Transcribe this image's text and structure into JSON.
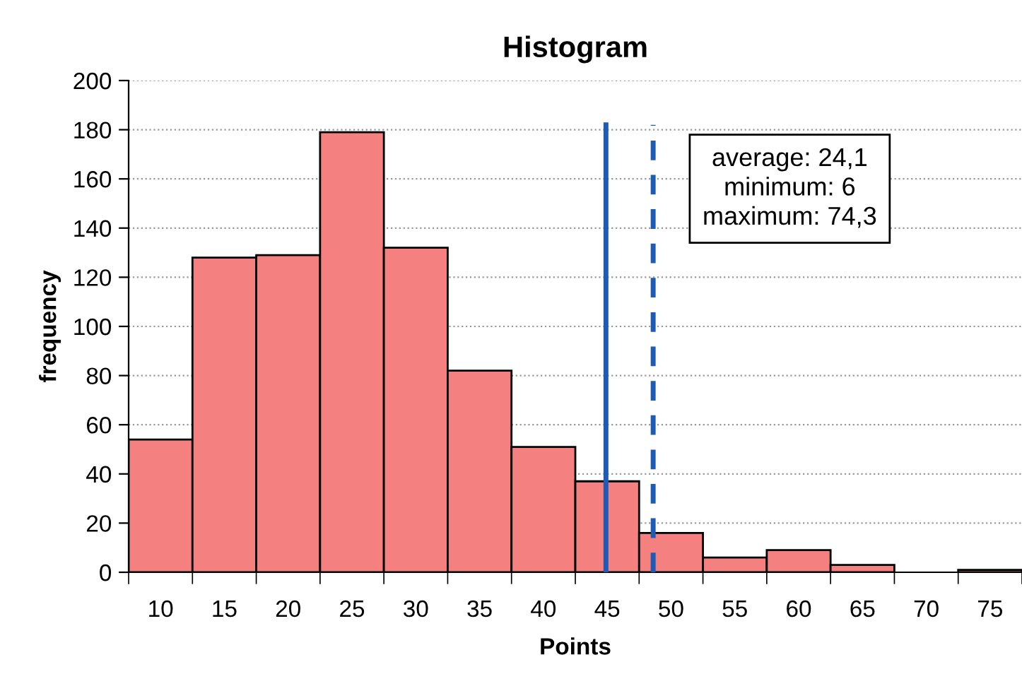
{
  "chart_data": {
    "type": "histogram",
    "title": "Histogram",
    "xlabel": "Points",
    "ylabel": "frequency",
    "bins": [
      7.5,
      12.5,
      17.5,
      22.5,
      27.5,
      32.5,
      37.5,
      42.5,
      47.5,
      52.5,
      57.5,
      62.5,
      67.5,
      72.5,
      77.5
    ],
    "values": [
      54,
      128,
      129,
      179,
      132,
      82,
      51,
      37,
      16,
      6,
      9,
      3,
      0,
      1
    ],
    "color": "#f48080",
    "xlim": [
      7.5,
      77.5
    ],
    "xticks": [
      {
        "value": 7.5,
        "label": null
      },
      10,
      {
        "value": 12.5,
        "label": null
      },
      15,
      {
        "value": 17.5,
        "label": null
      },
      20,
      {
        "value": 22.5,
        "label": null
      },
      25,
      {
        "value": 27.5,
        "label": null
      },
      30,
      {
        "value": 32.5,
        "label": null
      },
      35,
      {
        "value": 37.5,
        "label": null
      },
      40,
      {
        "value": 42.5,
        "label": null
      },
      45,
      {
        "value": 47.5,
        "label": null
      },
      50,
      {
        "value": 52.5,
        "label": null
      },
      55,
      {
        "value": 57.5,
        "label": null
      },
      60,
      {
        "value": 62.5,
        "label": null
      },
      65,
      {
        "value": 67.5,
        "label": null
      },
      70,
      {
        "value": 72.5,
        "label": null
      },
      75,
      {
        "value": 77.5,
        "label": null
      }
    ],
    "ylim": [
      0,
      200
    ],
    "yticks": [
      0,
      20,
      40,
      60,
      80,
      100,
      120,
      140,
      160,
      180,
      200
    ],
    "grid": "y",
    "ref_lines": [
      {
        "axis": "x",
        "value": 44.9,
        "color": "#1f5bb5",
        "line_style": "solid"
      },
      {
        "axis": "x",
        "value": 48.6,
        "color": "#1f5bb5",
        "line_style": "dashed"
      }
    ],
    "annotations": [
      "average: 24,1\nminimum: 6\nmaximum: 74,3"
    ]
  }
}
